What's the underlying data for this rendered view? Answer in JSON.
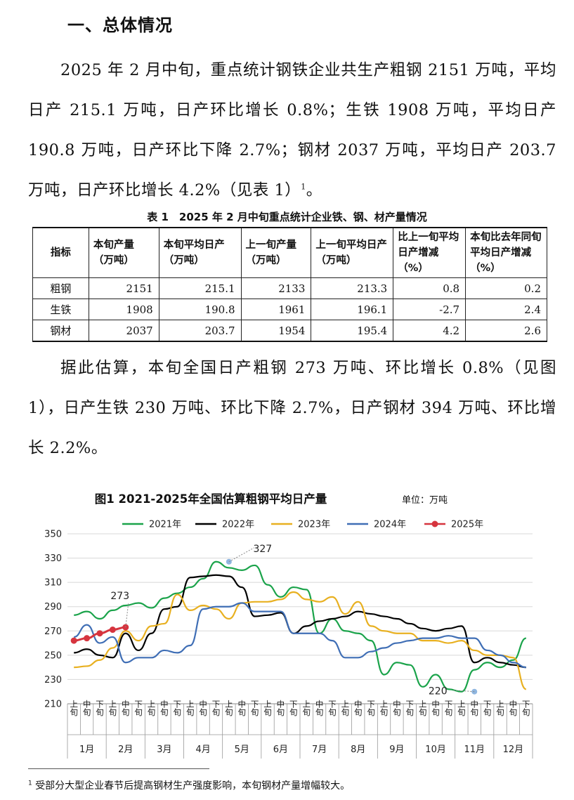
{
  "heading": "一、总体情况",
  "para1_a": "2025 年 2 月中旬，重点统计钢铁企业共生产粗钢 2151 万吨，平均日产 215.1 万吨，日产环比增长 0.8%；生铁 1908 万吨，平均日产 190.8 万吨，日产环比下降 2.7%；钢材 2037 万吨，平均日产 203.7 万吨，日产环比增长 4.2%（见表 1）",
  "para1_sup": "1",
  "para1_end": "。",
  "table_title": "表 1　2025 年 2 月中旬重点统计企业铁、钢、材产量情况",
  "table": {
    "headers": [
      "指标",
      "本旬产量（万吨）",
      "本旬平均日产（万吨）",
      "上一旬产量（万吨）",
      "上一旬平均日产（万吨）",
      "比上一旬平均日产增减（%）",
      "本旬比去年同旬平均日产增减（%）"
    ],
    "rows": [
      [
        "粗钢",
        "2151",
        "215.1",
        "2133",
        "213.3",
        "0.8",
        "0.2"
      ],
      [
        "生铁",
        "1908",
        "190.8",
        "1961",
        "196.1",
        "-2.7",
        "2.4"
      ],
      [
        "钢材",
        "2037",
        "203.7",
        "1954",
        "195.4",
        "4.2",
        "2.6"
      ]
    ]
  },
  "para2": "据此估算，本旬全国日产粗钢 273 万吨、环比增长 0.8%（见图 1），日产生铁 230 万吨、环比下降 2.7%，日产钢材 394 万吨、环比增长 2.2%。",
  "footnote_sup": "1",
  "footnote": "受部分大型企业春节后提高钢材生产强度影响，本旬钢材产量增幅较大。",
  "chart_data": {
    "type": "line",
    "title": "图1  2021-2025年全国估算粗钢平均日产量",
    "unit": "单位：万吨",
    "ylim": [
      210,
      350
    ],
    "yticks": [
      210,
      230,
      250,
      270,
      290,
      310,
      330,
      350
    ],
    "x_ticks": [
      "上旬",
      "中旬",
      "下旬",
      "上旬",
      "中旬",
      "下旬",
      "上旬",
      "中旬",
      "下旬",
      "上旬",
      "中旬",
      "下旬",
      "上旬",
      "中旬",
      "下旬",
      "上旬",
      "中旬",
      "下旬",
      "上旬",
      "中旬",
      "下旬",
      "上旬",
      "中旬",
      "下旬",
      "上旬",
      "中旬",
      "下旬",
      "上旬",
      "中旬",
      "下旬",
      "上旬",
      "中旬",
      "下旬",
      "上旬",
      "中旬",
      "下旬"
    ],
    "months": [
      "1月",
      "2月",
      "3月",
      "4月",
      "5月",
      "6月",
      "7月",
      "8月",
      "9月",
      "10月",
      "11月",
      "12月"
    ],
    "legend_position": "top",
    "grid": true,
    "annotations": [
      {
        "text": "327",
        "x_index": 12,
        "y": 327
      },
      {
        "text": "273",
        "x_index": 4,
        "y": 273
      },
      {
        "text": "220",
        "x_index": 31,
        "y": 220
      }
    ],
    "series": [
      {
        "name": "2021年",
        "color": "#1aa34a",
        "values": [
          283,
          286,
          280,
          287,
          291,
          293,
          289,
          297,
          301,
          306,
          313,
          327,
          322,
          320,
          324,
          308,
          298,
          306,
          304,
          268,
          280,
          270,
          268,
          262,
          234,
          244,
          242,
          224,
          234,
          222,
          220,
          238,
          244,
          240,
          246,
          264
        ]
      },
      {
        "name": "2022年",
        "color": "#000000",
        "values": [
          252,
          255,
          250,
          248,
          268,
          254,
          268,
          288,
          290,
          314,
          315,
          316,
          315,
          306,
          282,
          283,
          285,
          268,
          274,
          278,
          280,
          282,
          286,
          284,
          282,
          280,
          276,
          272,
          270,
          272,
          274,
          244,
          248,
          244,
          242,
          240
        ]
      },
      {
        "name": "2023年",
        "color": "#e8b020",
        "values": [
          240,
          241,
          246,
          256,
          270,
          262,
          274,
          276,
          300,
          287,
          291,
          288,
          280,
          293,
          294,
          294,
          296,
          302,
          296,
          294,
          298,
          284,
          294,
          274,
          270,
          268,
          268,
          262,
          262,
          260,
          262,
          254,
          250,
          250,
          248,
          222
        ]
      },
      {
        "name": "2024年",
        "color": "#3f6eb5",
        "values": [
          265,
          275,
          260,
          265,
          244,
          248,
          248,
          254,
          252,
          258,
          288,
          290,
          290,
          293,
          286,
          286,
          286,
          268,
          268,
          268,
          262,
          248,
          248,
          253,
          256,
          260,
          262,
          264,
          264,
          266,
          264,
          264,
          254,
          250,
          244,
          240
        ]
      },
      {
        "name": "2025年",
        "color": "#d6343e",
        "values": [
          262,
          264,
          268,
          271,
          273
        ]
      }
    ]
  }
}
